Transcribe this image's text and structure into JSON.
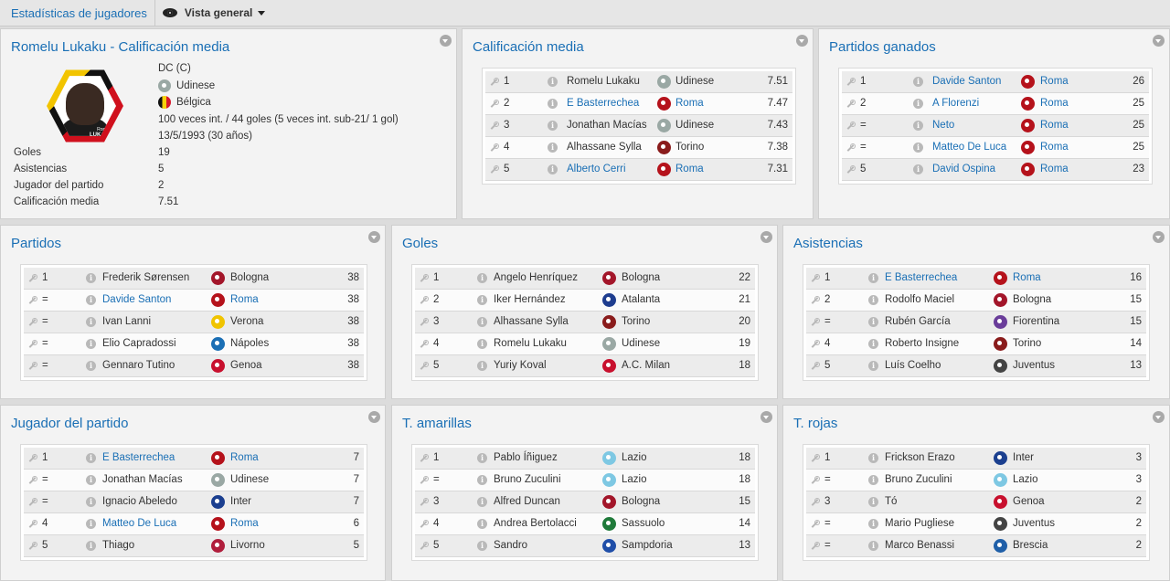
{
  "topbar": {
    "breadcrumb": "Estadísticas de jugadores",
    "view_label": "Vista general"
  },
  "profile": {
    "title": "Romelu Lukaku - Calificación media",
    "photo_text_first": "Romelu",
    "photo_text_last": "LUKAKU",
    "position": "DC (C)",
    "club": "Udinese",
    "nation": "Bélgica",
    "caps": "100 veces int. / 44 goles (5 veces int. sub-21/ 1 gol)",
    "birth": "13/5/1993 (30 años)",
    "stats": [
      {
        "label": "Goles",
        "value": "19"
      },
      {
        "label": "Asistencias",
        "value": "5"
      },
      {
        "label": "Jugador del partido",
        "value": "2"
      },
      {
        "label": "Calificación media",
        "value": "7.51"
      }
    ]
  },
  "panels": [
    {
      "title": "Calificación media",
      "rows": [
        {
          "rank": "1",
          "player": "Romelu Lukaku",
          "player_link": false,
          "club": "Udinese",
          "club_link": false,
          "crest": "#9aa8a4",
          "value": "7.51"
        },
        {
          "rank": "2",
          "player": "E Basterrechea",
          "player_link": true,
          "club": "Roma",
          "club_link": true,
          "crest": "#b5121b",
          "value": "7.47"
        },
        {
          "rank": "3",
          "player": "Jonathan Macías",
          "player_link": false,
          "club": "Udinese",
          "club_link": false,
          "crest": "#9aa8a4",
          "value": "7.43"
        },
        {
          "rank": "4",
          "player": "Alhassane Sylla",
          "player_link": false,
          "club": "Torino",
          "club_link": false,
          "crest": "#8a1c1c",
          "value": "7.38"
        },
        {
          "rank": "5",
          "player": "Alberto Cerri",
          "player_link": true,
          "club": "Roma",
          "club_link": true,
          "crest": "#b5121b",
          "value": "7.31"
        }
      ]
    },
    {
      "title": "Partidos ganados",
      "rows": [
        {
          "rank": "1",
          "player": "Davide Santon",
          "player_link": true,
          "club": "Roma",
          "club_link": true,
          "crest": "#b5121b",
          "value": "26"
        },
        {
          "rank": "2",
          "player": "A Florenzi",
          "player_link": true,
          "club": "Roma",
          "club_link": true,
          "crest": "#b5121b",
          "value": "25"
        },
        {
          "rank": "=",
          "player": "Neto",
          "player_link": true,
          "club": "Roma",
          "club_link": true,
          "crest": "#b5121b",
          "value": "25"
        },
        {
          "rank": "=",
          "player": "Matteo De Luca",
          "player_link": true,
          "club": "Roma",
          "club_link": true,
          "crest": "#b5121b",
          "value": "25"
        },
        {
          "rank": "5",
          "player": "David Ospina",
          "player_link": true,
          "club": "Roma",
          "club_link": true,
          "crest": "#b5121b",
          "value": "23"
        }
      ]
    },
    {
      "title": "Partidos",
      "rows": [
        {
          "rank": "1",
          "player": "Frederik Sørensen",
          "player_link": false,
          "club": "Bologna",
          "club_link": false,
          "crest": "#a3162a",
          "value": "38"
        },
        {
          "rank": "=",
          "player": "Davide Santon",
          "player_link": true,
          "club": "Roma",
          "club_link": true,
          "crest": "#b5121b",
          "value": "38"
        },
        {
          "rank": "=",
          "player": "Ivan Lanni",
          "player_link": false,
          "club": "Verona",
          "club_link": false,
          "crest": "#f0c400",
          "value": "38"
        },
        {
          "rank": "=",
          "player": "Elio Capradossi",
          "player_link": false,
          "club": "Nápoles",
          "club_link": false,
          "crest": "#1b6fb5",
          "value": "38"
        },
        {
          "rank": "=",
          "player": "Gennaro Tutino",
          "player_link": false,
          "club": "Genoa",
          "club_link": false,
          "crest": "#c8102e",
          "value": "38"
        }
      ]
    },
    {
      "title": "Goles",
      "rows": [
        {
          "rank": "1",
          "player": "Angelo Henríquez",
          "player_link": false,
          "club": "Bologna",
          "club_link": false,
          "crest": "#a3162a",
          "value": "22"
        },
        {
          "rank": "2",
          "player": "Iker Hernández",
          "player_link": false,
          "club": "Atalanta",
          "club_link": false,
          "crest": "#1e3d8f",
          "value": "21"
        },
        {
          "rank": "3",
          "player": "Alhassane Sylla",
          "player_link": false,
          "club": "Torino",
          "club_link": false,
          "crest": "#8a1c1c",
          "value": "20"
        },
        {
          "rank": "4",
          "player": "Romelu Lukaku",
          "player_link": false,
          "club": "Udinese",
          "club_link": false,
          "crest": "#9aa8a4",
          "value": "19"
        },
        {
          "rank": "5",
          "player": "Yuriy Koval",
          "player_link": false,
          "club": "A.C. Milan",
          "club_link": false,
          "crest": "#c8102e",
          "value": "18"
        }
      ]
    },
    {
      "title": "Asistencias",
      "rows": [
        {
          "rank": "1",
          "player": "E Basterrechea",
          "player_link": true,
          "club": "Roma",
          "club_link": true,
          "crest": "#b5121b",
          "value": "16"
        },
        {
          "rank": "2",
          "player": "Rodolfo Maciel",
          "player_link": false,
          "club": "Bologna",
          "club_link": false,
          "crest": "#a3162a",
          "value": "15"
        },
        {
          "rank": "=",
          "player": "Rubén García",
          "player_link": false,
          "club": "Fiorentina",
          "club_link": false,
          "crest": "#6a3d9a",
          "value": "15"
        },
        {
          "rank": "4",
          "player": "Roberto Insigne",
          "player_link": false,
          "club": "Torino",
          "club_link": false,
          "crest": "#8a1c1c",
          "value": "14"
        },
        {
          "rank": "5",
          "player": "Luís Coelho",
          "player_link": false,
          "club": "Juventus",
          "club_link": false,
          "crest": "#444444",
          "value": "13"
        }
      ]
    },
    {
      "title": "Jugador del partido",
      "rows": [
        {
          "rank": "1",
          "player": "E Basterrechea",
          "player_link": true,
          "club": "Roma",
          "club_link": true,
          "crest": "#b5121b",
          "value": "7"
        },
        {
          "rank": "=",
          "player": "Jonathan Macías",
          "player_link": false,
          "club": "Udinese",
          "club_link": false,
          "crest": "#9aa8a4",
          "value": "7"
        },
        {
          "rank": "=",
          "player": "Ignacio Abeledo",
          "player_link": false,
          "club": "Inter",
          "club_link": false,
          "crest": "#1b3f8f",
          "value": "7"
        },
        {
          "rank": "4",
          "player": "Matteo De Luca",
          "player_link": true,
          "club": "Roma",
          "club_link": true,
          "crest": "#b5121b",
          "value": "6"
        },
        {
          "rank": "5",
          "player": "Thiago",
          "player_link": false,
          "club": "Livorno",
          "club_link": false,
          "crest": "#b01e3c",
          "value": "5"
        }
      ]
    },
    {
      "title": "T. amarillas",
      "rows": [
        {
          "rank": "1",
          "player": "Pablo Íñiguez",
          "player_link": false,
          "club": "Lazio",
          "club_link": false,
          "crest": "#7ec8e3",
          "value": "18"
        },
        {
          "rank": "=",
          "player": "Bruno Zuculini",
          "player_link": false,
          "club": "Lazio",
          "club_link": false,
          "crest": "#7ec8e3",
          "value": "18"
        },
        {
          "rank": "3",
          "player": "Alfred Duncan",
          "player_link": false,
          "club": "Bologna",
          "club_link": false,
          "crest": "#a3162a",
          "value": "15"
        },
        {
          "rank": "4",
          "player": "Andrea Bertolacci",
          "player_link": false,
          "club": "Sassuolo",
          "club_link": false,
          "crest": "#1f7a3a",
          "value": "14"
        },
        {
          "rank": "5",
          "player": "Sandro",
          "player_link": false,
          "club": "Sampdoria",
          "club_link": false,
          "crest": "#1f4ea8",
          "value": "13"
        }
      ]
    },
    {
      "title": "T. rojas",
      "rows": [
        {
          "rank": "1",
          "player": "Frickson Erazo",
          "player_link": false,
          "club": "Inter",
          "club_link": false,
          "crest": "#1b3f8f",
          "value": "3"
        },
        {
          "rank": "=",
          "player": "Bruno Zuculini",
          "player_link": false,
          "club": "Lazio",
          "club_link": false,
          "crest": "#7ec8e3",
          "value": "3"
        },
        {
          "rank": "3",
          "player": "Tó",
          "player_link": false,
          "club": "Genoa",
          "club_link": false,
          "crest": "#c8102e",
          "value": "2"
        },
        {
          "rank": "=",
          "player": "Mario Pugliese",
          "player_link": false,
          "club": "Juventus",
          "club_link": false,
          "crest": "#444444",
          "value": "2"
        },
        {
          "rank": "=",
          "player": "Marco Benassi",
          "player_link": false,
          "club": "Brescia",
          "club_link": false,
          "crest": "#1f5fa8",
          "value": "2"
        }
      ]
    }
  ]
}
